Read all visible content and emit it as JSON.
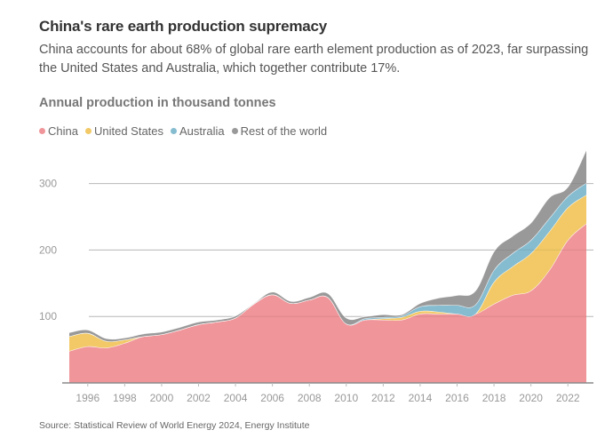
{
  "header": {
    "title": "China's rare earth production supremacy",
    "subtitle": "China accounts for about 68% of global rare earth element production as of 2023, far surpassing the United States and Australia, which together contribute 17%.",
    "chart_label": "Annual production in thousand tonnes"
  },
  "legend": [
    {
      "label": "China",
      "color": "#f0959a"
    },
    {
      "label": "United States",
      "color": "#f2c966"
    },
    {
      "label": "Australia",
      "color": "#86bcd0"
    },
    {
      "label": "Rest of the world",
      "color": "#999999"
    }
  ],
  "footer": {
    "source": "Source: Statistical Review of World Energy 2024, Energy Institute"
  },
  "chart_data": {
    "type": "area",
    "stacked": true,
    "title": "China's rare earth production supremacy",
    "ylabel": "Annual production in thousand tonnes",
    "xlabel": "",
    "x": [
      1995,
      1996,
      1997,
      1998,
      1999,
      2000,
      2001,
      2002,
      2003,
      2004,
      2005,
      2006,
      2007,
      2008,
      2009,
      2010,
      2011,
      2012,
      2013,
      2014,
      2015,
      2016,
      2017,
      2018,
      2019,
      2020,
      2021,
      2022,
      2023
    ],
    "series": [
      {
        "name": "China",
        "color": "#f0959a",
        "values": [
          48,
          55,
          53,
          60,
          70,
          73,
          80,
          88,
          92,
          98,
          119,
          133,
          120,
          125,
          129,
          89,
          95,
          95,
          95,
          104,
          104,
          104,
          104,
          119,
          132,
          139,
          170,
          215,
          240
        ]
      },
      {
        "name": "United States",
        "color": "#f2c966",
        "values": [
          22,
          20,
          10,
          5,
          0,
          0,
          0,
          0,
          0,
          0,
          0,
          0,
          0,
          0,
          0,
          0,
          0,
          2,
          4,
          4,
          3,
          0,
          0,
          33,
          43,
          56,
          58,
          49,
          43
        ]
      },
      {
        "name": "Australia",
        "color": "#86bcd0",
        "values": [
          0,
          0,
          0,
          0,
          0,
          0,
          0,
          0,
          0,
          0,
          0,
          0,
          0,
          0,
          0,
          0,
          2,
          2,
          2,
          7,
          10,
          13,
          14,
          18,
          20,
          20,
          20,
          17,
          18
        ]
      },
      {
        "name": "Rest of the world",
        "color": "#999999",
        "values": [
          6,
          5,
          4,
          3,
          4,
          4,
          4,
          4,
          3,
          3,
          1,
          4,
          3,
          4,
          6,
          9,
          3,
          4,
          2,
          5,
          11,
          15,
          21,
          28,
          26,
          26,
          31,
          14,
          50
        ]
      }
    ],
    "ylim": [
      0,
      350
    ],
    "yticks": [
      100,
      200,
      300
    ],
    "xticks": [
      1996,
      1998,
      2000,
      2002,
      2004,
      2006,
      2008,
      2010,
      2012,
      2014,
      2016,
      2018,
      2020,
      2022
    ],
    "grid": true,
    "legend_position": "top-left"
  }
}
